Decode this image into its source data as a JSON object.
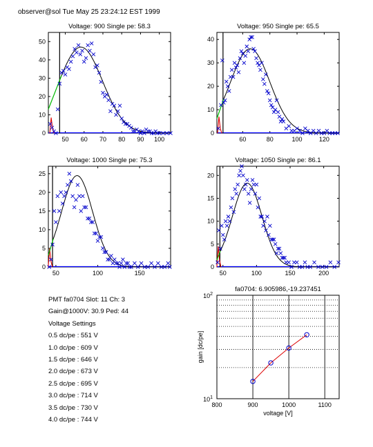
{
  "header": "observer@sol  Tue May 25 23:24:12 EST 1999",
  "info": {
    "pmt_line": "PMT fa0704 Slot: 11 Ch: 3",
    "gain_line": "Gain@1000V: 30.9 Ped: 44",
    "settings_title": "Voltage Settings",
    "settings": [
      "0.5 dc/pe : 551 V",
      "1.0 dc/pe : 609 V",
      "1.5 dc/pe : 646 V",
      "2.0 dc/pe : 673 V",
      "2.5 dc/pe : 695 V",
      "3.0 dc/pe : 714 V",
      "3.5 dc/pe : 730 V",
      "4.0 dc/pe : 744 V"
    ]
  },
  "colors": {
    "data": "#0000cc",
    "fit": "#000000",
    "pedestal": "#dd0000",
    "green_fit": "#00bb00",
    "gain_line": "#dd0000",
    "axis": "#0000ff"
  },
  "chart_data": [
    {
      "type": "scatter",
      "title": "Voltage: 900 Single pe: 58.3",
      "xlim": [
        41,
        106
      ],
      "ylim": [
        0,
        55
      ],
      "xticks": [
        50,
        60,
        70,
        80,
        90,
        100
      ],
      "yticks": [
        0,
        10,
        20,
        30,
        40,
        50
      ],
      "peak": 58.3,
      "amp": 47,
      "sigma": 11.5,
      "green_end": 48,
      "ped_x": 42.5,
      "ped_h": 8.5,
      "vline": 47,
      "seed": 3,
      "points": [
        [
          42,
          5
        ],
        [
          43,
          3
        ],
        [
          44,
          1
        ],
        [
          45,
          0
        ],
        [
          46,
          13
        ],
        [
          47,
          27
        ],
        [
          48,
          33
        ],
        [
          49,
          34
        ],
        [
          50,
          32
        ],
        [
          51,
          36
        ],
        [
          52,
          35
        ],
        [
          53,
          39
        ],
        [
          54,
          42
        ],
        [
          55,
          46
        ],
        [
          56,
          44
        ],
        [
          57,
          48
        ],
        [
          58,
          43
        ],
        [
          59,
          45
        ],
        [
          60,
          39
        ],
        [
          61,
          41
        ],
        [
          62,
          48
        ],
        [
          63,
          45
        ],
        [
          64,
          49
        ],
        [
          65,
          43
        ],
        [
          66,
          36
        ],
        [
          67,
          37
        ],
        [
          68,
          33
        ],
        [
          69,
          28
        ],
        [
          70,
          22
        ],
        [
          71,
          20
        ],
        [
          72,
          21
        ],
        [
          73,
          18
        ],
        [
          74,
          12
        ],
        [
          75,
          16
        ],
        [
          76,
          15
        ],
        [
          77,
          10
        ],
        [
          78,
          12
        ],
        [
          79,
          15
        ],
        [
          80,
          8
        ],
        [
          81,
          6
        ],
        [
          82,
          5
        ],
        [
          83,
          5
        ],
        [
          84,
          4
        ],
        [
          85,
          3
        ],
        [
          86,
          1
        ],
        [
          87,
          1
        ],
        [
          88,
          2
        ],
        [
          89,
          1
        ],
        [
          90,
          0
        ],
        [
          91,
          1
        ],
        [
          92,
          0
        ],
        [
          93,
          2
        ],
        [
          94,
          1
        ],
        [
          95,
          1
        ],
        [
          96,
          0
        ],
        [
          97,
          0
        ],
        [
          98,
          1
        ],
        [
          99,
          0
        ],
        [
          100,
          0
        ],
        [
          102,
          0
        ],
        [
          104,
          0
        ],
        [
          106,
          0
        ]
      ]
    },
    {
      "type": "scatter",
      "title": "Voltage: 950 Single pe: 65.5",
      "xlim": [
        41,
        131
      ],
      "ylim": [
        0,
        43
      ],
      "xticks": [
        60,
        80,
        100,
        120
      ],
      "yticks": [
        0,
        10,
        20,
        30,
        40
      ],
      "peak": 65.5,
      "amp": 36,
      "sigma": 14.5,
      "green_end": 46,
      "ped_x": 42.5,
      "ped_h": 7,
      "vline": 45.5,
      "seed": 7,
      "points": [
        [
          42,
          2
        ],
        [
          44,
          12
        ],
        [
          45,
          31
        ],
        [
          46,
          13
        ],
        [
          47,
          14
        ],
        [
          48,
          22
        ],
        [
          49,
          20
        ],
        [
          50,
          18
        ],
        [
          51,
          24
        ],
        [
          52,
          27
        ],
        [
          53,
          24
        ],
        [
          54,
          30
        ],
        [
          55,
          28
        ],
        [
          56,
          29
        ],
        [
          57,
          26
        ],
        [
          58,
          32
        ],
        [
          59,
          35
        ],
        [
          60,
          34
        ],
        [
          61,
          30
        ],
        [
          62,
          33
        ],
        [
          63,
          37
        ],
        [
          64,
          35
        ],
        [
          65,
          40
        ],
        [
          66,
          41
        ],
        [
          67,
          41
        ],
        [
          68,
          36
        ],
        [
          69,
          35
        ],
        [
          70,
          32
        ],
        [
          71,
          30
        ],
        [
          72,
          29
        ],
        [
          73,
          27
        ],
        [
          74,
          30
        ],
        [
          75,
          23
        ],
        [
          76,
          21
        ],
        [
          77,
          25
        ],
        [
          78,
          18
        ],
        [
          79,
          17
        ],
        [
          80,
          14
        ],
        [
          81,
          12
        ],
        [
          82,
          11
        ],
        [
          83,
          9
        ],
        [
          84,
          10
        ],
        [
          85,
          14
        ],
        [
          86,
          9
        ],
        [
          87,
          7
        ],
        [
          88,
          5
        ],
        [
          89,
          6
        ],
        [
          90,
          5
        ],
        [
          92,
          2
        ],
        [
          94,
          3
        ],
        [
          96,
          1
        ],
        [
          98,
          1
        ],
        [
          100,
          2
        ],
        [
          102,
          1
        ],
        [
          104,
          0
        ],
        [
          106,
          2
        ],
        [
          108,
          1
        ],
        [
          110,
          0
        ],
        [
          112,
          1
        ],
        [
          114,
          0
        ],
        [
          116,
          1
        ],
        [
          118,
          0
        ],
        [
          120,
          0
        ],
        [
          122,
          1
        ],
        [
          124,
          0
        ],
        [
          126,
          0
        ],
        [
          128,
          0
        ],
        [
          130,
          0
        ]
      ]
    },
    {
      "type": "scatter",
      "title": "Voltage: 1000 Single pe: 75.3",
      "xlim": [
        41,
        187
      ],
      "ylim": [
        0,
        27
      ],
      "xticks": [
        50,
        100,
        150
      ],
      "yticks": [
        0,
        5,
        10,
        15,
        20,
        25
      ],
      "peak": 75.3,
      "amp": 24.5,
      "sigma": 18.5,
      "green_end": 47,
      "ped_x": 42.5,
      "ped_h": 5,
      "vline": 46,
      "seed": 11,
      "points": [
        [
          42,
          0
        ],
        [
          44,
          2
        ],
        [
          46,
          6
        ],
        [
          48,
          15
        ],
        [
          50,
          12
        ],
        [
          52,
          19
        ],
        [
          54,
          15
        ],
        [
          56,
          20
        ],
        [
          58,
          17
        ],
        [
          60,
          19
        ],
        [
          62,
          20
        ],
        [
          64,
          22
        ],
        [
          66,
          25
        ],
        [
          68,
          23
        ],
        [
          70,
          19
        ],
        [
          72,
          16
        ],
        [
          74,
          18
        ],
        [
          76,
          22
        ],
        [
          78,
          19
        ],
        [
          80,
          15
        ],
        [
          82,
          19
        ],
        [
          84,
          16
        ],
        [
          86,
          16
        ],
        [
          88,
          13
        ],
        [
          90,
          13
        ],
        [
          92,
          12
        ],
        [
          94,
          12
        ],
        [
          96,
          9
        ],
        [
          98,
          9
        ],
        [
          100,
          7
        ],
        [
          102,
          8
        ],
        [
          104,
          8
        ],
        [
          106,
          5
        ],
        [
          108,
          4
        ],
        [
          110,
          4
        ],
        [
          112,
          2
        ],
        [
          114,
          2
        ],
        [
          116,
          3
        ],
        [
          118,
          1
        ],
        [
          120,
          2
        ],
        [
          122,
          1
        ],
        [
          124,
          1
        ],
        [
          126,
          0
        ],
        [
          128,
          1
        ],
        [
          130,
          2
        ],
        [
          132,
          0
        ],
        [
          134,
          1
        ],
        [
          136,
          1
        ],
        [
          138,
          0
        ],
        [
          140,
          0
        ],
        [
          144,
          1
        ],
        [
          148,
          0
        ],
        [
          152,
          1
        ],
        [
          156,
          0
        ],
        [
          160,
          0
        ],
        [
          164,
          1
        ],
        [
          168,
          0
        ],
        [
          172,
          1
        ],
        [
          176,
          0
        ],
        [
          180,
          0
        ],
        [
          184,
          1
        ],
        [
          186,
          0
        ]
      ]
    },
    {
      "type": "scatter",
      "title": "Voltage: 1050 Single pe: 86.1",
      "xlim": [
        41,
        223
      ],
      "ylim": [
        0,
        22
      ],
      "xticks": [
        50,
        100,
        150,
        200
      ],
      "yticks": [
        0,
        5,
        10,
        15,
        20
      ],
      "peak": 86.1,
      "amp": 18.3,
      "sigma": 22,
      "green_end": 46,
      "ped_x": 43,
      "ped_h": 4.5,
      "vline": 45.5,
      "seed": 19,
      "points": [
        [
          42,
          1
        ],
        [
          44,
          8
        ],
        [
          46,
          4
        ],
        [
          48,
          9
        ],
        [
          50,
          7
        ],
        [
          52,
          6
        ],
        [
          54,
          10
        ],
        [
          56,
          9
        ],
        [
          58,
          11
        ],
        [
          60,
          10
        ],
        [
          62,
          13
        ],
        [
          64,
          15
        ],
        [
          66,
          12
        ],
        [
          68,
          17
        ],
        [
          70,
          16
        ],
        [
          72,
          18
        ],
        [
          74,
          20
        ],
        [
          76,
          21
        ],
        [
          78,
          22
        ],
        [
          80,
          20
        ],
        [
          82,
          17
        ],
        [
          84,
          18
        ],
        [
          86,
          19
        ],
        [
          88,
          16
        ],
        [
          90,
          14
        ],
        [
          92,
          17
        ],
        [
          94,
          19
        ],
        [
          96,
          18
        ],
        [
          98,
          16
        ],
        [
          100,
          18
        ],
        [
          102,
          13
        ],
        [
          104,
          15
        ],
        [
          106,
          11
        ],
        [
          108,
          11
        ],
        [
          110,
          9
        ],
        [
          112,
          10
        ],
        [
          114,
          8
        ],
        [
          116,
          11
        ],
        [
          118,
          7
        ],
        [
          120,
          9
        ],
        [
          122,
          6
        ],
        [
          124,
          6
        ],
        [
          126,
          6
        ],
        [
          128,
          5
        ],
        [
          130,
          3
        ],
        [
          132,
          4
        ],
        [
          134,
          4
        ],
        [
          136,
          3
        ],
        [
          138,
          2
        ],
        [
          140,
          2
        ],
        [
          142,
          2
        ],
        [
          144,
          1
        ],
        [
          148,
          1
        ],
        [
          152,
          0
        ],
        [
          156,
          1
        ],
        [
          160,
          1
        ],
        [
          164,
          0
        ],
        [
          168,
          0
        ],
        [
          172,
          1
        ],
        [
          176,
          0
        ],
        [
          180,
          0
        ],
        [
          186,
          1
        ],
        [
          192,
          0
        ],
        [
          198,
          0
        ],
        [
          204,
          0
        ],
        [
          210,
          1
        ],
        [
          216,
          0
        ],
        [
          222,
          1
        ]
      ]
    },
    {
      "type": "line",
      "title": "fa0704: 6.905986,-19.237451",
      "xlabel": "voltage [V]",
      "ylabel": "gain [dc/pe]",
      "log_y": true,
      "grid": true,
      "xlim": [
        800,
        1140
      ],
      "ylim": [
        10,
        100
      ],
      "xticks": [
        800,
        900,
        1000,
        1100
      ],
      "yticks": [
        10,
        100
      ],
      "ytick_labels": [
        "10^1",
        "10^2"
      ],
      "x": [
        900,
        950,
        1000,
        1050
      ],
      "y": [
        14.7,
        22.2,
        30.9,
        41.5
      ]
    }
  ]
}
